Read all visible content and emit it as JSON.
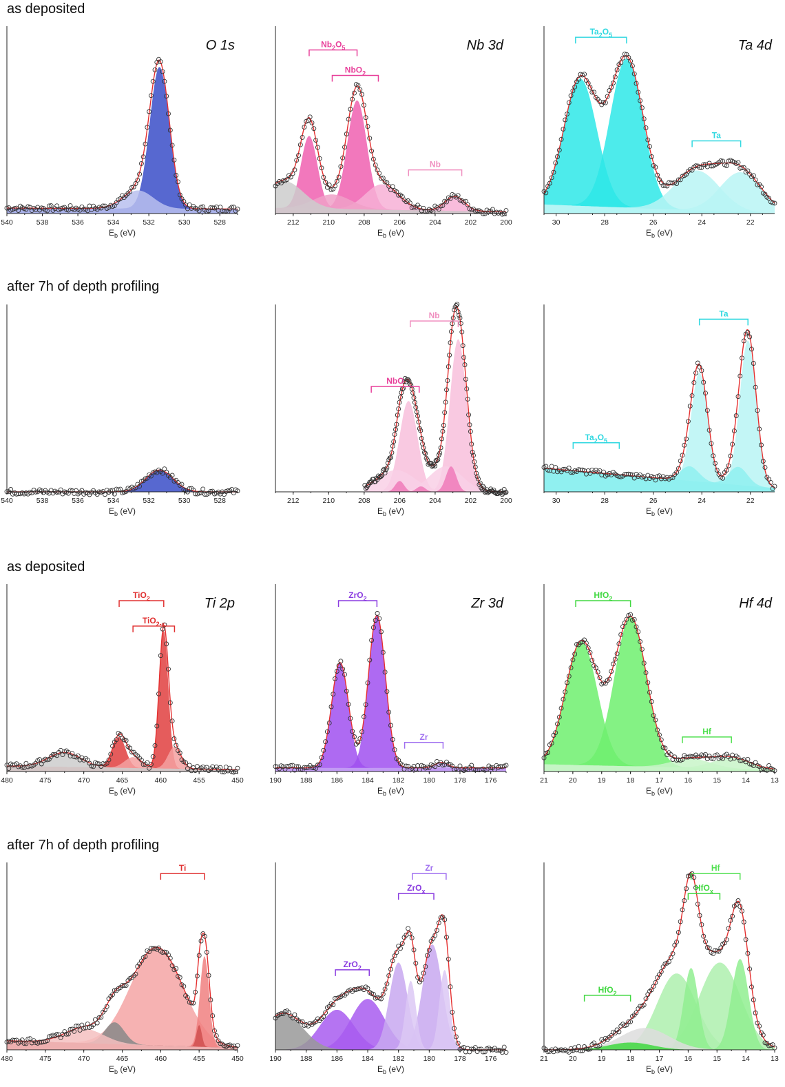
{
  "sections": [
    {
      "label": "as deposited"
    },
    {
      "label": "after 7h of depth profiling"
    },
    {
      "label": "as deposited"
    },
    {
      "label": "after 7h of depth profiling"
    }
  ],
  "chart_data": [
    {
      "type": "area",
      "row": 0,
      "col": 0,
      "title": "O 1s",
      "xlabel": "E_b (eV)",
      "xlim": [
        540,
        527
      ],
      "xticks": [
        540,
        538,
        536,
        534,
        532,
        530,
        528
      ],
      "ylim": [
        0,
        1
      ],
      "peaks": [
        {
          "center": 531.4,
          "fwhm": 1.3,
          "amp": 0.78,
          "color": "#3a4ec8"
        },
        {
          "center": 532.6,
          "fwhm": 2.0,
          "amp": 0.1,
          "color": "#b8bfee"
        }
      ],
      "baseline": [
        0.03,
        0.025
      ],
      "annotations": []
    },
    {
      "type": "area",
      "row": 0,
      "col": 1,
      "title": "Nb 3d",
      "xlabel": "E_b (eV)",
      "xlim": [
        213,
        200
      ],
      "xticks": [
        212,
        210,
        208,
        206,
        204,
        202,
        200
      ],
      "ylim": [
        0,
        1
      ],
      "peaks": [
        {
          "center": 211.1,
          "fwhm": 1.1,
          "amp": 0.4,
          "color": "#f060b0"
        },
        {
          "center": 208.4,
          "fwhm": 1.3,
          "amp": 0.6,
          "color": "#f060b0"
        },
        {
          "center": 207.0,
          "fwhm": 2.2,
          "amp": 0.14,
          "color": "#f7b0d6"
        },
        {
          "center": 202.9,
          "fwhm": 1.3,
          "amp": 0.08,
          "color": "#f7b0d6"
        },
        {
          "center": 209.8,
          "fwhm": 2.5,
          "amp": 0.08,
          "color": "#f0a0c8"
        },
        {
          "center": 212.5,
          "fwhm": 2.5,
          "amp": 0.15,
          "color": "#cccccc"
        }
      ],
      "baseline": [
        0.03,
        0.01
      ],
      "annotations": [
        {
          "text": "Nb",
          "sub": "2",
          "after": "O",
          "sub2": "5",
          "x1": 211.1,
          "x2": 208.4,
          "y": 0.9,
          "color": "#e8409a"
        },
        {
          "text": "NbO",
          "sub": "2",
          "after": "",
          "sub2": "",
          "x1": 209.8,
          "x2": 207.2,
          "y": 0.76,
          "color": "#e8409a"
        },
        {
          "text": "Nb",
          "sub": "",
          "after": "",
          "sub2": "",
          "x1": 205.5,
          "x2": 202.5,
          "y": 0.24,
          "color": "#f090c0"
        }
      ]
    },
    {
      "type": "area",
      "row": 0,
      "col": 2,
      "title": "Ta 4d",
      "xlabel": "E_b (eV)",
      "xlim": [
        30.5,
        21
      ],
      "xticks": [
        30,
        28,
        26,
        24,
        22
      ],
      "ylim": [
        0,
        1
      ],
      "peaks": [
        {
          "center": 29.0,
          "fwhm": 1.6,
          "amp": 0.7,
          "color": "#2ee8e8"
        },
        {
          "center": 27.1,
          "fwhm": 1.6,
          "amp": 0.82,
          "color": "#2ee8e8"
        },
        {
          "center": 24.2,
          "fwhm": 2.2,
          "amp": 0.22,
          "color": "#b8f4f4"
        },
        {
          "center": 22.4,
          "fwhm": 2.0,
          "amp": 0.22,
          "color": "#b8f4f4"
        }
      ],
      "baseline": [
        0.05,
        0.0
      ],
      "annotations": [
        {
          "text": "Ta",
          "sub": "2",
          "after": "O",
          "sub2": "5",
          "x1": 29.2,
          "x2": 27.1,
          "y": 0.97,
          "color": "#30d8e0"
        },
        {
          "text": "Ta",
          "sub": "",
          "after": "",
          "sub2": "",
          "x1": 24.4,
          "x2": 22.4,
          "y": 0.4,
          "color": "#30d8e0"
        }
      ]
    },
    {
      "type": "area",
      "row": 1,
      "col": 0,
      "title": "",
      "xlabel": "E_b (eV)",
      "xlim": [
        540,
        527
      ],
      "xticks": [
        540,
        538,
        536,
        534,
        532,
        530,
        528
      ],
      "ylim": [
        0,
        1
      ],
      "peaks": [
        {
          "center": 531.4,
          "fwhm": 1.8,
          "amp": 0.12,
          "color": "#3a4ec8"
        }
      ],
      "baseline": [
        0.0,
        0.0
      ],
      "annotations": []
    },
    {
      "type": "area",
      "row": 1,
      "col": 1,
      "title": "",
      "xlabel": "E_b (eV)",
      "xlim": [
        213,
        200
      ],
      "xticks": [
        212,
        210,
        208,
        206,
        204,
        202,
        200
      ],
      "ylim": [
        0,
        1
      ],
      "peaks": [
        {
          "center": 205.5,
          "fwhm": 1.2,
          "amp": 0.5,
          "color": "#f8c0dc"
        },
        {
          "center": 202.7,
          "fwhm": 1.1,
          "amp": 0.84,
          "color": "#f8c0dc"
        },
        {
          "center": 206.2,
          "fwhm": 2.5,
          "amp": 0.12,
          "color": "#f9d0e6"
        },
        {
          "center": 203.4,
          "fwhm": 2.2,
          "amp": 0.14,
          "color": "#f9d0e6"
        },
        {
          "center": 206.0,
          "fwhm": 0.6,
          "amp": 0.06,
          "color": "#f07ab8"
        },
        {
          "center": 204.8,
          "fwhm": 0.6,
          "amp": 0.03,
          "color": "#f07ab8"
        },
        {
          "center": 203.1,
          "fwhm": 0.7,
          "amp": 0.14,
          "color": "#f07ab8"
        }
      ],
      "baseline": [
        0.0,
        0.0
      ],
      "xmin_data": 208,
      "annotations": [
        {
          "text": "NbO",
          "sub": "",
          "after": "",
          "sub2": "",
          "x1": 207.6,
          "x2": 204.9,
          "y": 0.58,
          "color": "#e8409a"
        },
        {
          "text": "Nb",
          "sub": "",
          "after": "",
          "sub2": "",
          "x1": 205.4,
          "x2": 202.7,
          "y": 0.94,
          "color": "#f090c0"
        }
      ]
    },
    {
      "type": "area",
      "row": 1,
      "col": 2,
      "title": "",
      "xlabel": "E_b (eV)",
      "xlim": [
        30.5,
        21
      ],
      "xticks": [
        30,
        28,
        26,
        24,
        22
      ],
      "ylim": [
        0,
        1
      ],
      "peaks": [
        {
          "center": 24.1,
          "fwhm": 0.8,
          "amp": 0.6,
          "color": "#b8f4f4"
        },
        {
          "center": 22.1,
          "fwhm": 0.8,
          "amp": 0.8,
          "color": "#b8f4f4"
        },
        {
          "center": 24.5,
          "fwhm": 0.9,
          "amp": 0.08,
          "color": "#8ff0f0"
        },
        {
          "center": 22.5,
          "fwhm": 0.9,
          "amp": 0.1,
          "color": "#8ff0f0"
        }
      ],
      "baseline": [
        0.13,
        0.02
      ],
      "annotations": [
        {
          "text": "Ta",
          "sub": "2",
          "after": "O",
          "sub2": "5",
          "x1": 29.3,
          "x2": 27.4,
          "y": 0.27,
          "color": "#30d8e0"
        },
        {
          "text": "Ta",
          "sub": "",
          "after": "",
          "sub2": "",
          "x1": 24.1,
          "x2": 22.1,
          "y": 0.95,
          "color": "#30d8e0"
        }
      ]
    },
    {
      "type": "area",
      "row": 2,
      "col": 0,
      "title": "Ti 2p",
      "xlabel": "E_b (eV)",
      "xlim": [
        480,
        450
      ],
      "xticks": [
        480,
        475,
        470,
        465,
        460,
        455,
        450
      ],
      "ylim": [
        0,
        1
      ],
      "peaks": [
        {
          "center": 459.6,
          "fwhm": 1.4,
          "amp": 0.76,
          "color": "#e04040"
        },
        {
          "center": 465.4,
          "fwhm": 2.0,
          "amp": 0.17,
          "color": "#e04040"
        },
        {
          "center": 458.2,
          "fwhm": 2.0,
          "amp": 0.12,
          "color": "#f4a0a0"
        },
        {
          "center": 463.6,
          "fwhm": 2.6,
          "amp": 0.06,
          "color": "#f4a0a0"
        },
        {
          "center": 472.5,
          "fwhm": 5.0,
          "amp": 0.08,
          "color": "#cccccc"
        }
      ],
      "baseline": [
        0.03,
        0.01
      ],
      "annotations": [
        {
          "text": "TiO",
          "sub": "2",
          "after": "",
          "sub2": "",
          "x1": 465.4,
          "x2": 459.6,
          "y": 0.94,
          "color": "#e03030"
        },
        {
          "text": "TiO",
          "sub": "2-x",
          "after": "",
          "sub2": "",
          "x1": 463.6,
          "x2": 458.2,
          "y": 0.8,
          "color": "#e03030"
        }
      ]
    },
    {
      "type": "area",
      "row": 2,
      "col": 1,
      "title": "Zr 3d",
      "xlabel": "E_b (eV)",
      "xlim": [
        190,
        175
      ],
      "xticks": [
        190,
        188,
        186,
        184,
        182,
        180,
        178,
        176
      ],
      "ylim": [
        0,
        1
      ],
      "peaks": [
        {
          "center": 185.8,
          "fwhm": 1.3,
          "amp": 0.58,
          "color": "#a050f0"
        },
        {
          "center": 183.4,
          "fwhm": 1.3,
          "amp": 0.84,
          "color": "#a050f0"
        },
        {
          "center": 179.2,
          "fwhm": 1.0,
          "amp": 0.03,
          "color": "#c8a8f4"
        }
      ],
      "baseline": [
        0.02,
        0.02
      ],
      "annotations": [
        {
          "text": "ZrO",
          "sub": "2",
          "after": "",
          "sub2": "",
          "x1": 185.9,
          "x2": 183.4,
          "y": 0.94,
          "color": "#8a3ce0"
        },
        {
          "text": "Zr",
          "sub": "",
          "after": "",
          "sub2": "",
          "x1": 181.6,
          "x2": 179.1,
          "y": 0.16,
          "color": "#a070f0"
        }
      ]
    },
    {
      "type": "area",
      "row": 2,
      "col": 2,
      "title": "Hf 4d",
      "xlabel": "E_b (eV)",
      "xlim": [
        21,
        13
      ],
      "xticks": [
        21,
        20,
        19,
        18,
        17,
        16,
        15,
        14,
        13
      ],
      "ylim": [
        0,
        1
      ],
      "peaks": [
        {
          "center": 19.7,
          "fwhm": 1.3,
          "amp": 0.68,
          "color": "#6ef06e"
        },
        {
          "center": 18.0,
          "fwhm": 1.3,
          "amp": 0.82,
          "color": "#6ef06e"
        },
        {
          "center": 15.9,
          "fwhm": 1.6,
          "amp": 0.05,
          "color": "#c8f4c8"
        },
        {
          "center": 14.5,
          "fwhm": 1.5,
          "amp": 0.06,
          "color": "#c8f4c8"
        }
      ],
      "baseline": [
        0.04,
        0.01
      ],
      "annotations": [
        {
          "text": "HfO",
          "sub": "2",
          "after": "",
          "sub2": "",
          "x1": 19.9,
          "x2": 18.0,
          "y": 0.94,
          "color": "#40d840"
        },
        {
          "text": "Hf",
          "sub": "",
          "after": "",
          "sub2": "",
          "x1": 16.2,
          "x2": 14.5,
          "y": 0.19,
          "color": "#50e050"
        }
      ]
    },
    {
      "type": "area",
      "row": 3,
      "col": 0,
      "title": "",
      "xlabel": "E_b (eV)",
      "xlim": [
        480,
        450
      ],
      "xticks": [
        480,
        475,
        470,
        465,
        460,
        455,
        450
      ],
      "ylim": [
        0,
        1
      ],
      "peaks": [
        {
          "center": 460.5,
          "fwhm": 8.0,
          "amp": 0.54,
          "color": "#f4a4a4"
        },
        {
          "center": 454.3,
          "fwhm": 1.4,
          "amp": 0.5,
          "color": "#f08080"
        },
        {
          "center": 466.0,
          "fwhm": 3.0,
          "amp": 0.12,
          "color": "#888888"
        },
        {
          "center": 455.0,
          "fwhm": 0.8,
          "amp": 0.12,
          "color": "#d05050"
        },
        {
          "center": 470.0,
          "fwhm": 6.0,
          "amp": 0.08,
          "color": "#f4c0c0"
        }
      ],
      "baseline": [
        0.05,
        0.01
      ],
      "annotations": [
        {
          "text": "Ti",
          "sub": "",
          "after": "",
          "sub2": "",
          "x1": 460.0,
          "x2": 454.3,
          "y": 0.97,
          "color": "#e03030"
        }
      ]
    },
    {
      "type": "area",
      "row": 3,
      "col": 1,
      "title": "",
      "xlabel": "E_b (eV)",
      "xlim": [
        190,
        175
      ],
      "xticks": [
        190,
        188,
        186,
        184,
        182,
        180,
        178,
        176
      ],
      "ylim": [
        0,
        1
      ],
      "peaks": [
        {
          "center": 186.0,
          "fwhm": 2.6,
          "amp": 0.22,
          "color": "#a85cf0"
        },
        {
          "center": 184.0,
          "fwhm": 2.6,
          "amp": 0.28,
          "color": "#a85cf0"
        },
        {
          "center": 182.0,
          "fwhm": 1.4,
          "amp": 0.48,
          "color": "#c8a8f0"
        },
        {
          "center": 179.8,
          "fwhm": 1.5,
          "amp": 0.58,
          "color": "#c8a8f0"
        },
        {
          "center": 181.2,
          "fwhm": 0.8,
          "amp": 0.38,
          "color": "#dcc8f4"
        },
        {
          "center": 179.0,
          "fwhm": 0.8,
          "amp": 0.44,
          "color": "#dcc8f4"
        },
        {
          "center": 189.5,
          "fwhm": 3.0,
          "amp": 0.2,
          "color": "#999999"
        }
      ],
      "baseline": [
        0.0,
        0.0
      ],
      "annotations": [
        {
          "text": "ZrO",
          "sub": "2",
          "after": "",
          "sub2": "",
          "x1": 186.1,
          "x2": 183.9,
          "y": 0.44,
          "color": "#8a3ce0"
        },
        {
          "text": "ZrO",
          "sub": "x",
          "after": "",
          "sub2": "",
          "x1": 182.0,
          "x2": 179.7,
          "y": 0.86,
          "color": "#8a3ce0"
        },
        {
          "text": "Zr",
          "sub": "",
          "after": "",
          "sub2": "",
          "x1": 181.1,
          "x2": 178.9,
          "y": 0.97,
          "color": "#a070f0"
        }
      ]
    },
    {
      "type": "area",
      "row": 3,
      "col": 2,
      "title": "",
      "xlabel": "E_b (eV)",
      "xlim": [
        21,
        13
      ],
      "xticks": [
        21,
        20,
        19,
        18,
        17,
        16,
        15,
        14,
        13
      ],
      "ylim": [
        0,
        1
      ],
      "peaks": [
        {
          "center": 16.4,
          "fwhm": 1.6,
          "amp": 0.42,
          "color": "#aef0ae"
        },
        {
          "center": 14.9,
          "fwhm": 1.7,
          "amp": 0.48,
          "color": "#aef0ae"
        },
        {
          "center": 15.9,
          "fwhm": 0.6,
          "amp": 0.45,
          "color": "#90ee90"
        },
        {
          "center": 14.2,
          "fwhm": 0.7,
          "amp": 0.5,
          "color": "#90ee90"
        },
        {
          "center": 17.5,
          "fwhm": 2.0,
          "amp": 0.12,
          "color": "#dddddd"
        },
        {
          "center": 18.0,
          "fwhm": 1.8,
          "amp": 0.04,
          "color": "#40d840"
        }
      ],
      "baseline": [
        0.0,
        0.0
      ],
      "annotations": [
        {
          "text": "HfO",
          "sub": "2",
          "after": "",
          "sub2": "",
          "x1": 19.6,
          "x2": 18.0,
          "y": 0.3,
          "color": "#40d840"
        },
        {
          "text": "HfO",
          "sub": "x",
          "after": "",
          "sub2": "",
          "x1": 16.0,
          "x2": 14.9,
          "y": 0.86,
          "color": "#40d840"
        },
        {
          "text": "Hf",
          "sub": "",
          "after": "",
          "sub2": "",
          "x1": 15.9,
          "x2": 14.2,
          "y": 0.97,
          "color": "#50e050"
        }
      ]
    }
  ]
}
